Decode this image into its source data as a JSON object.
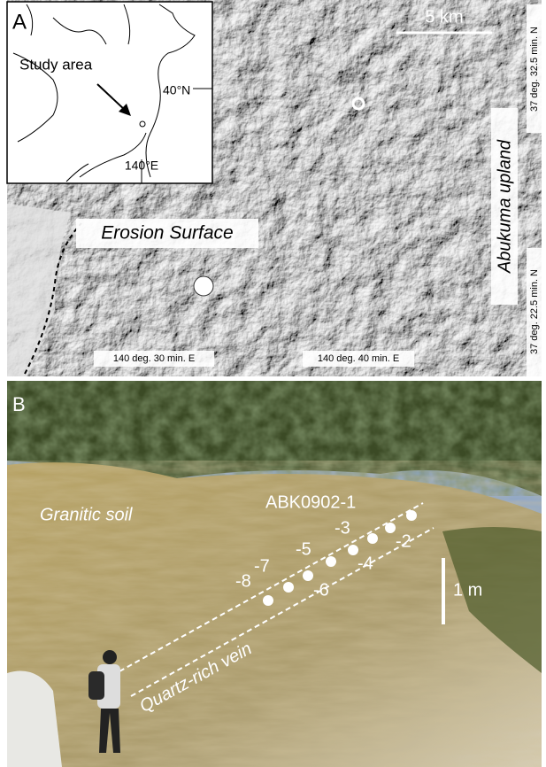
{
  "panel_a": {
    "label": "A",
    "inset": {
      "study_area": "Study area",
      "lat": "40°N",
      "lon": "140°E"
    },
    "scale_bar": "5 km",
    "erosion_surface": "Erosion Surface",
    "upland": "Abukuma upland",
    "lat_labels": [
      "37 deg. 32.5 min. N",
      "37 deg. 22.5 min. N"
    ],
    "lon_labels": [
      "140 deg. 30 min. E",
      "140 deg. 40 min. E"
    ]
  },
  "panel_b": {
    "label": "B",
    "soil": "Granitic soil",
    "sample_id": "ABK0902-1",
    "samples": [
      "-2",
      "-3",
      "-4",
      "-5",
      "-6",
      "-7",
      "-8"
    ],
    "vein": "Quartz-rich vein",
    "scale": "1 m"
  }
}
